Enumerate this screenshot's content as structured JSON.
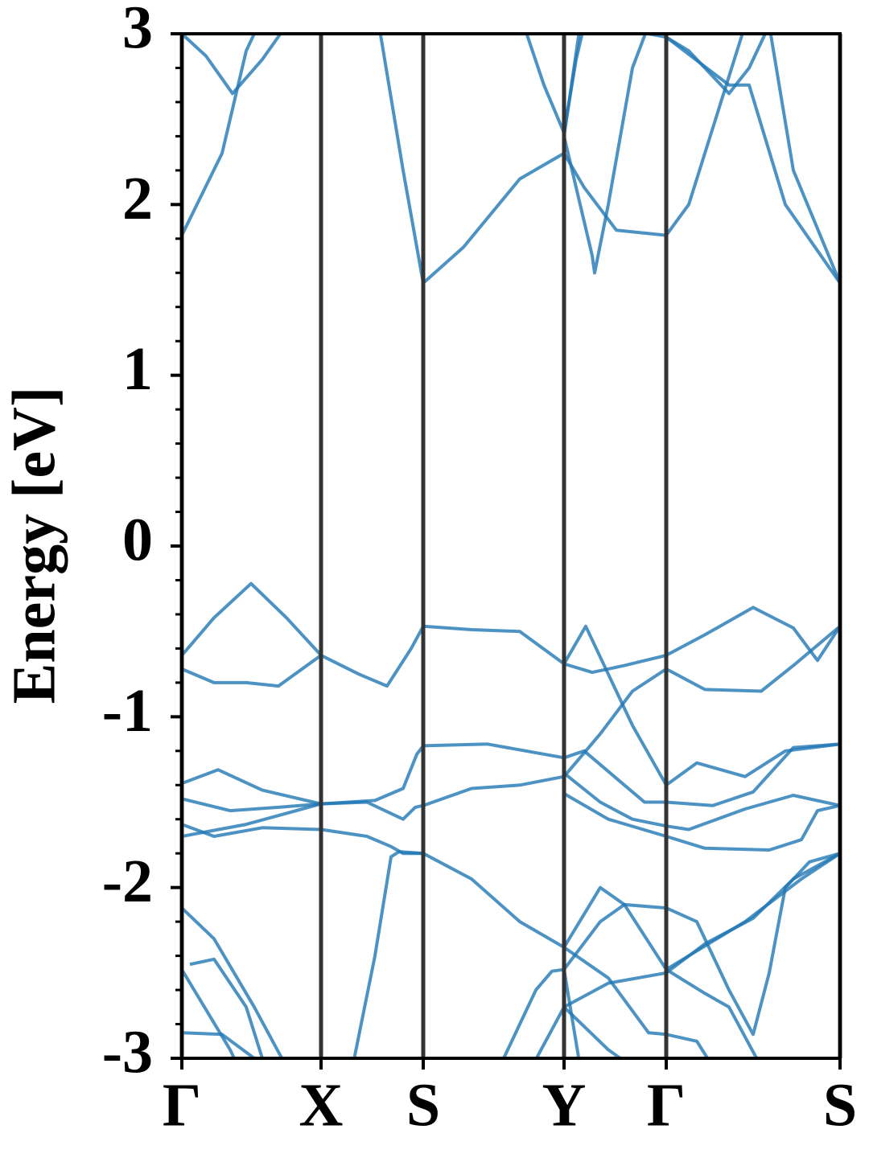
{
  "chart_data": {
    "type": "line",
    "ylabel": "Energy [eV]",
    "color": "#1f77b4",
    "xlim": [
      0,
      8.18
    ],
    "ylim": [
      -3,
      3
    ],
    "xticks": [
      {
        "value": 0,
        "label": "Γ"
      },
      {
        "value": 1.73,
        "label": "X"
      },
      {
        "value": 3.0,
        "label": "S"
      },
      {
        "value": 4.75,
        "label": "Y"
      },
      {
        "value": 6.02,
        "label": "Γ"
      },
      {
        "value": 8.18,
        "label": "S"
      }
    ],
    "yticks": [
      -3,
      -2,
      -1,
      0,
      1,
      2,
      3
    ],
    "yminorticks": [
      -2.8,
      -2.6,
      -2.4,
      -2.2,
      -1.8,
      -1.6,
      -1.4,
      -1.2,
      -0.8,
      -0.6,
      -0.4,
      -0.2,
      0.2,
      0.4,
      0.6,
      0.8,
      1.2,
      1.4,
      1.6,
      1.8,
      2.2,
      2.4,
      2.6,
      2.8
    ],
    "grid": true,
    "series": [
      {
        "x": [
          0,
          0.4,
          0.86,
          1.3,
          1.73,
          2.2,
          2.55,
          2.85,
          3.0,
          3.6,
          4.2,
          4.75,
          5.1,
          5.5,
          6.02,
          6.5,
          7.1,
          7.6,
          7.9,
          8.18
        ],
        "values": [
          -0.64,
          -0.42,
          -0.22,
          -0.42,
          -0.64,
          -0.75,
          -0.82,
          -0.6,
          -0.47,
          -0.49,
          -0.5,
          -0.69,
          -0.74,
          -0.7,
          -0.64,
          -0.52,
          -0.36,
          -0.48,
          -0.67,
          -0.47
        ]
      },
      {
        "x": [
          0,
          0.4,
          0.8,
          1.2,
          1.73
        ],
        "values": [
          -0.72,
          -0.8,
          -0.8,
          -0.82,
          -0.64
        ]
      },
      {
        "x": [
          4.75,
          5.02,
          5.3,
          5.6,
          6.02,
          6.4,
          7.0,
          7.5,
          8.18
        ],
        "values": [
          -0.69,
          -0.47,
          -0.75,
          -1.05,
          -1.4,
          -1.27,
          -1.35,
          -1.2,
          -1.16
        ]
      },
      {
        "x": [
          3.0,
          3.6,
          4.2,
          4.75,
          5.2,
          5.6,
          6.02,
          6.5,
          7.2,
          7.6,
          8.18
        ],
        "values": [
          -1.52,
          -1.42,
          -1.4,
          -1.35,
          -1.1,
          -0.85,
          -0.72,
          -0.84,
          -0.85,
          -0.7,
          -0.47
        ]
      },
      {
        "x": [
          0,
          0.6,
          1.2,
          1.73,
          2.4,
          2.75,
          2.92,
          3.0,
          3.8,
          4.75,
          5.0,
          5.4,
          5.75,
          6.02,
          6.6,
          7.1,
          7.6,
          8.18
        ],
        "values": [
          -1.48,
          -1.55,
          -1.53,
          -1.51,
          -1.49,
          -1.42,
          -1.22,
          -1.17,
          -1.16,
          -1.24,
          -1.2,
          -1.36,
          -1.5,
          -1.5,
          -1.52,
          -1.44,
          -1.18,
          -1.16
        ]
      },
      {
        "x": [
          0,
          0.45,
          1.0,
          1.73,
          2.3,
          2.75,
          2.9,
          3.0
        ],
        "values": [
          -1.39,
          -1.31,
          -1.43,
          -1.51,
          -1.5,
          -1.6,
          -1.53,
          -1.52
        ]
      },
      {
        "x": [
          4.75,
          5.2,
          5.6,
          6.02,
          6.3,
          7.0,
          7.6,
          8.18
        ],
        "values": [
          -1.33,
          -1.5,
          -1.6,
          -1.64,
          -1.66,
          -1.54,
          -1.46,
          -1.52
        ]
      },
      {
        "x": [
          0,
          0.4,
          1.0,
          1.73,
          2.3,
          2.6,
          2.75,
          3.0,
          3.6,
          4.2,
          4.75,
          5.2,
          5.5,
          6.02,
          7.0,
          7.7,
          8.18
        ],
        "values": [
          -1.63,
          -1.7,
          -1.65,
          -1.66,
          -1.7,
          -1.76,
          -1.8,
          -1.8,
          -1.95,
          -2.2,
          -2.35,
          -2.0,
          -2.1,
          -2.48,
          -2.2,
          -1.95,
          -1.8
        ]
      },
      {
        "x": [
          0,
          0.8,
          1.73
        ],
        "values": [
          -1.7,
          -1.63,
          -1.51
        ]
      },
      {
        "x": [
          4.75,
          5.3,
          6.02,
          6.5,
          7.3,
          7.7,
          7.9,
          8.18
        ],
        "values": [
          -1.45,
          -1.6,
          -1.7,
          -1.77,
          -1.78,
          -1.72,
          -1.55,
          -1.52
        ]
      },
      {
        "x": [
          2.1,
          2.4,
          2.6,
          2.7,
          3.0
        ],
        "values": [
          -3.1,
          -2.4,
          -1.82,
          -1.79,
          -1.8
        ]
      },
      {
        "x": [
          0,
          0.4,
          0.9,
          1.3
        ],
        "values": [
          -2.12,
          -2.3,
          -2.7,
          -3.05
        ]
      },
      {
        "x": [
          0,
          0.6,
          0.7
        ],
        "values": [
          -2.48,
          -2.95,
          -3.05
        ]
      },
      {
        "x": [
          0.1,
          0.4,
          0.8,
          1.0
        ],
        "values": [
          -2.45,
          -2.42,
          -2.7,
          -3.0
        ]
      },
      {
        "x": [
          0,
          0.5,
          0.9
        ],
        "values": [
          -2.85,
          -2.86,
          -3.0
        ]
      },
      {
        "x": [
          4.0,
          4.4,
          4.6,
          4.75,
          4.95
        ],
        "values": [
          -3.0,
          -2.6,
          -2.49,
          -2.48,
          -3.05
        ]
      },
      {
        "x": [
          4.35,
          4.75,
          5.3,
          6.02,
          6.5,
          7.1,
          7.6,
          8.18
        ],
        "values": [
          -3.05,
          -2.7,
          -2.56,
          -2.5,
          -2.33,
          -2.18,
          -1.95,
          -1.8
        ]
      },
      {
        "x": [
          4.75,
          5.3,
          5.8,
          6.02,
          6.4,
          6.6
        ],
        "values": [
          -2.35,
          -2.53,
          -2.85,
          -2.86,
          -2.9,
          -3.05
        ]
      },
      {
        "x": [
          4.75,
          5.2,
          5.5,
          6.02,
          6.4,
          6.8,
          7.1,
          7.3,
          7.5,
          7.8,
          8.18
        ],
        "values": [
          -2.48,
          -2.2,
          -2.1,
          -2.12,
          -2.2,
          -2.6,
          -2.86,
          -2.5,
          -2.0,
          -1.85,
          -1.8
        ]
      },
      {
        "x": [
          4.75,
          5.3,
          5.6
        ],
        "values": [
          -2.7,
          -2.95,
          -3.05
        ]
      },
      {
        "x": [
          6.02,
          6.5,
          6.8,
          7.2
        ],
        "values": [
          -2.48,
          -2.62,
          -2.7,
          -3.05
        ]
      },
      {
        "x": [
          0,
          0.5,
          0.8,
          1.0
        ],
        "values": [
          1.82,
          2.3,
          2.9,
          3.1
        ]
      },
      {
        "x": [
          0,
          0.3,
          0.63,
          1.0,
          1.3
        ],
        "values": [
          3.0,
          2.87,
          2.65,
          2.85,
          3.05
        ]
      },
      {
        "x": [
          2.45,
          2.75,
          3.0,
          3.5,
          4.2,
          4.75,
          5.0,
          5.4,
          6.02,
          6.3,
          6.7,
          7.0
        ],
        "values": [
          3.05,
          2.2,
          1.54,
          1.75,
          2.15,
          2.3,
          2.1,
          1.85,
          1.82,
          2.0,
          2.6,
          3.05
        ]
      },
      {
        "x": [
          4.25,
          4.5,
          4.75,
          4.9,
          5.0
        ],
        "values": [
          3.05,
          2.7,
          2.42,
          2.85,
          3.05
        ]
      },
      {
        "x": [
          4.75,
          5.1,
          5.13,
          5.3,
          5.6,
          5.8
        ],
        "values": [
          2.4,
          1.7,
          1.6,
          2.0,
          2.8,
          3.05
        ]
      },
      {
        "x": [
          4.75,
          4.95
        ],
        "values": [
          2.4,
          3.05
        ]
      },
      {
        "x": [
          5.8,
          6.02,
          6.3,
          6.8,
          7.05,
          7.3
        ],
        "values": [
          3.0,
          2.98,
          2.9,
          2.65,
          2.8,
          3.05
        ]
      },
      {
        "x": [
          6.02,
          6.8,
          7.05,
          7.5,
          8.18
        ],
        "values": [
          2.98,
          2.7,
          2.7,
          2.0,
          1.54
        ]
      },
      {
        "x": [
          7.3,
          7.6,
          8.18
        ],
        "values": [
          3.05,
          2.2,
          1.54
        ]
      }
    ]
  }
}
